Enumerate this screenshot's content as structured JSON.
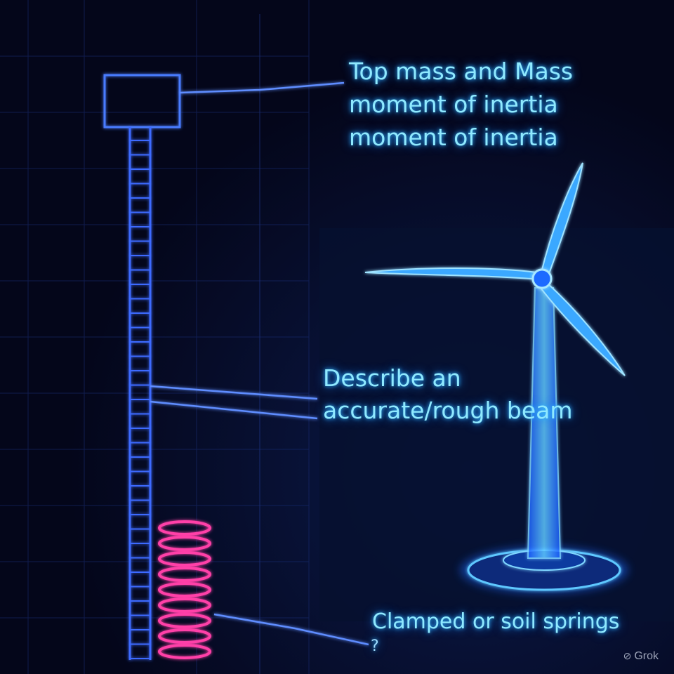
{
  "labels": {
    "top_mass": [
      "Top mass and Mass",
      "moment of inertia",
      "moment of inertia"
    ],
    "beam": [
      "Describe an",
      "accurate/rough beam"
    ],
    "foundation": "Clamped or soil springs",
    "question_mark": "?"
  },
  "watermark": {
    "text": "Grok",
    "icon": "grok-logo-icon"
  },
  "colors": {
    "background": "#05081c",
    "structure_line": "#3d6bff",
    "glow_text": "#8fe9ff",
    "turbine": "#3aa8ff",
    "spring": "#ff3fa8"
  }
}
